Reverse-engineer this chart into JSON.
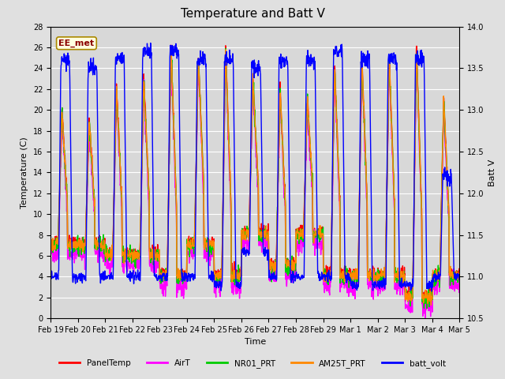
{
  "title": "Temperature and Batt V",
  "xlabel": "Time",
  "ylabel_left": "Temperature (C)",
  "ylabel_right": "Batt V",
  "annotation": "EE_met",
  "ylim_left": [
    0,
    28
  ],
  "ylim_right": [
    10.5,
    14.0
  ],
  "background_color": "#e0e0e0",
  "plot_bg_color": "#d8d8d8",
  "xtick_labels": [
    "Feb 19",
    "Feb 20",
    "Feb 21",
    "Feb 22",
    "Feb 23",
    "Feb 24",
    "Feb 25",
    "Feb 26",
    "Feb 27",
    "Feb 28",
    "Feb 29",
    "Mar 1",
    "Mar 2",
    "Mar 3",
    "Mar 4",
    "Mar 5"
  ],
  "legend_entries": [
    "PanelTemp",
    "AirT",
    "NR01_PRT",
    "AM25T_PRT",
    "batt_volt"
  ],
  "legend_colors": [
    "#ff0000",
    "#ff00ff",
    "#00cc00",
    "#ff8800",
    "#0000ff"
  ],
  "line_width": 1.0,
  "title_fontsize": 11,
  "label_fontsize": 8,
  "tick_fontsize": 7,
  "day_peaks": [
    20,
    19,
    22,
    23,
    26,
    25,
    26,
    23,
    22,
    21,
    24,
    25,
    25,
    26,
    21
  ],
  "day_mins": [
    7,
    7,
    6,
    6,
    4,
    7,
    4,
    8,
    5,
    8,
    4,
    4,
    4,
    2,
    4
  ],
  "batt_night": [
    11.0,
    11.0,
    11.0,
    11.0,
    11.0,
    11.0,
    10.9,
    11.3,
    11.0,
    11.0,
    11.0,
    10.9,
    10.9,
    10.9,
    11.0
  ],
  "batt_day": [
    13.6,
    13.5,
    13.6,
    13.7,
    13.7,
    13.6,
    13.6,
    13.5,
    13.6,
    13.6,
    13.7,
    13.6,
    13.6,
    13.6,
    12.2
  ]
}
